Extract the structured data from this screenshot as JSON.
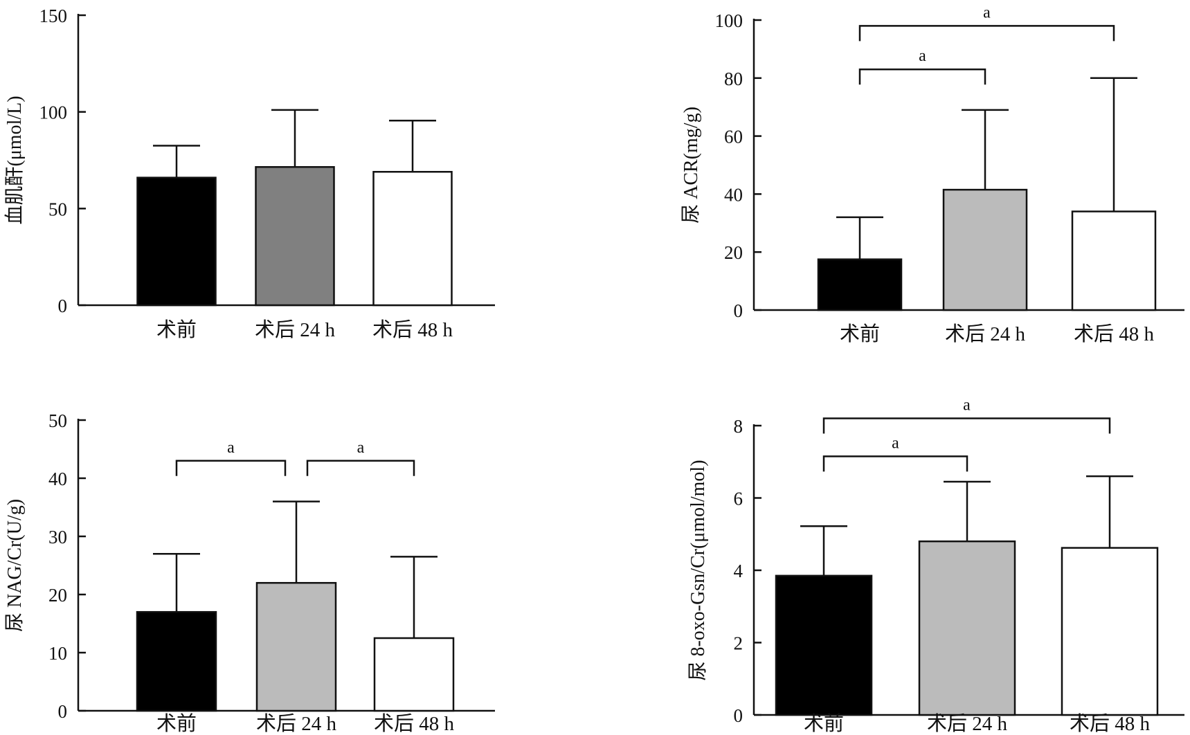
{
  "chart_data": [
    {
      "type": "bar",
      "ylabel": "血肌酐(μmol/L)",
      "categories": [
        "术前",
        "术后 24 h",
        "术后 48 h"
      ],
      "values": [
        66,
        71.5,
        69
      ],
      "errors": [
        16.5,
        29.5,
        26.5
      ],
      "bar_colors": [
        "#000000",
        "#808080",
        "#ffffff"
      ],
      "ylim": [
        0,
        150
      ],
      "yticks": [
        "0",
        "50",
        "100",
        "150"
      ],
      "yticks_values": [
        0,
        50,
        100,
        150
      ],
      "significance": []
    },
    {
      "type": "bar",
      "ylabel": "尿 ACR(mg/g)",
      "categories": [
        "术前",
        "术后 24 h",
        "术后 48 h"
      ],
      "values": [
        17.5,
        41.5,
        34
      ],
      "errors": [
        14.5,
        27.5,
        46
      ],
      "bar_colors": [
        "#000000",
        "#bbbbbb",
        "#ffffff"
      ],
      "ylim": [
        0,
        100
      ],
      "yticks": [
        "0",
        "20",
        "40",
        "60",
        "80",
        "100"
      ],
      "yticks_values": [
        0,
        20,
        40,
        60,
        80,
        100
      ],
      "significance": [
        {
          "from": 0,
          "to": 1,
          "label": "a",
          "level": 83
        },
        {
          "from": 0,
          "to": 2,
          "label": "a",
          "level": 98
        }
      ]
    },
    {
      "type": "bar",
      "ylabel": "尿 NAG/Cr(U/g)",
      "categories": [
        "术前",
        "术后 24 h",
        "术后 48 h"
      ],
      "values": [
        17,
        22,
        12.5
      ],
      "errors": [
        10,
        14,
        14
      ],
      "bar_colors": [
        "#000000",
        "#bbbbbb",
        "#ffffff"
      ],
      "ylim": [
        0,
        50
      ],
      "yticks": [
        "0",
        "10",
        "20",
        "30",
        "40",
        "50"
      ],
      "yticks_values": [
        0,
        10,
        20,
        30,
        40,
        50
      ],
      "significance": [
        {
          "from": 0,
          "to": 1,
          "label": "a",
          "level": 43
        },
        {
          "from": 1,
          "to": 2,
          "label": "a",
          "level": 43
        }
      ]
    },
    {
      "type": "bar",
      "ylabel": "尿 8-oxo-Gsn/Cr(μmol/mol)",
      "categories": [
        "术前",
        "术后 24 h",
        "术后 48 h"
      ],
      "values": [
        3.85,
        4.8,
        4.62
      ],
      "errors": [
        1.37,
        1.65,
        1.98
      ],
      "bar_colors": [
        "#000000",
        "#bbbbbb",
        "#ffffff"
      ],
      "ylim": [
        0,
        8
      ],
      "yticks": [
        "0",
        "2",
        "4",
        "6",
        "8"
      ],
      "yticks_values": [
        0,
        2,
        4,
        6,
        8
      ],
      "significance": [
        {
          "from": 0,
          "to": 1,
          "label": "a",
          "level": 7.15
        },
        {
          "from": 0,
          "to": 2,
          "label": "a",
          "level": 8.2
        }
      ]
    }
  ]
}
